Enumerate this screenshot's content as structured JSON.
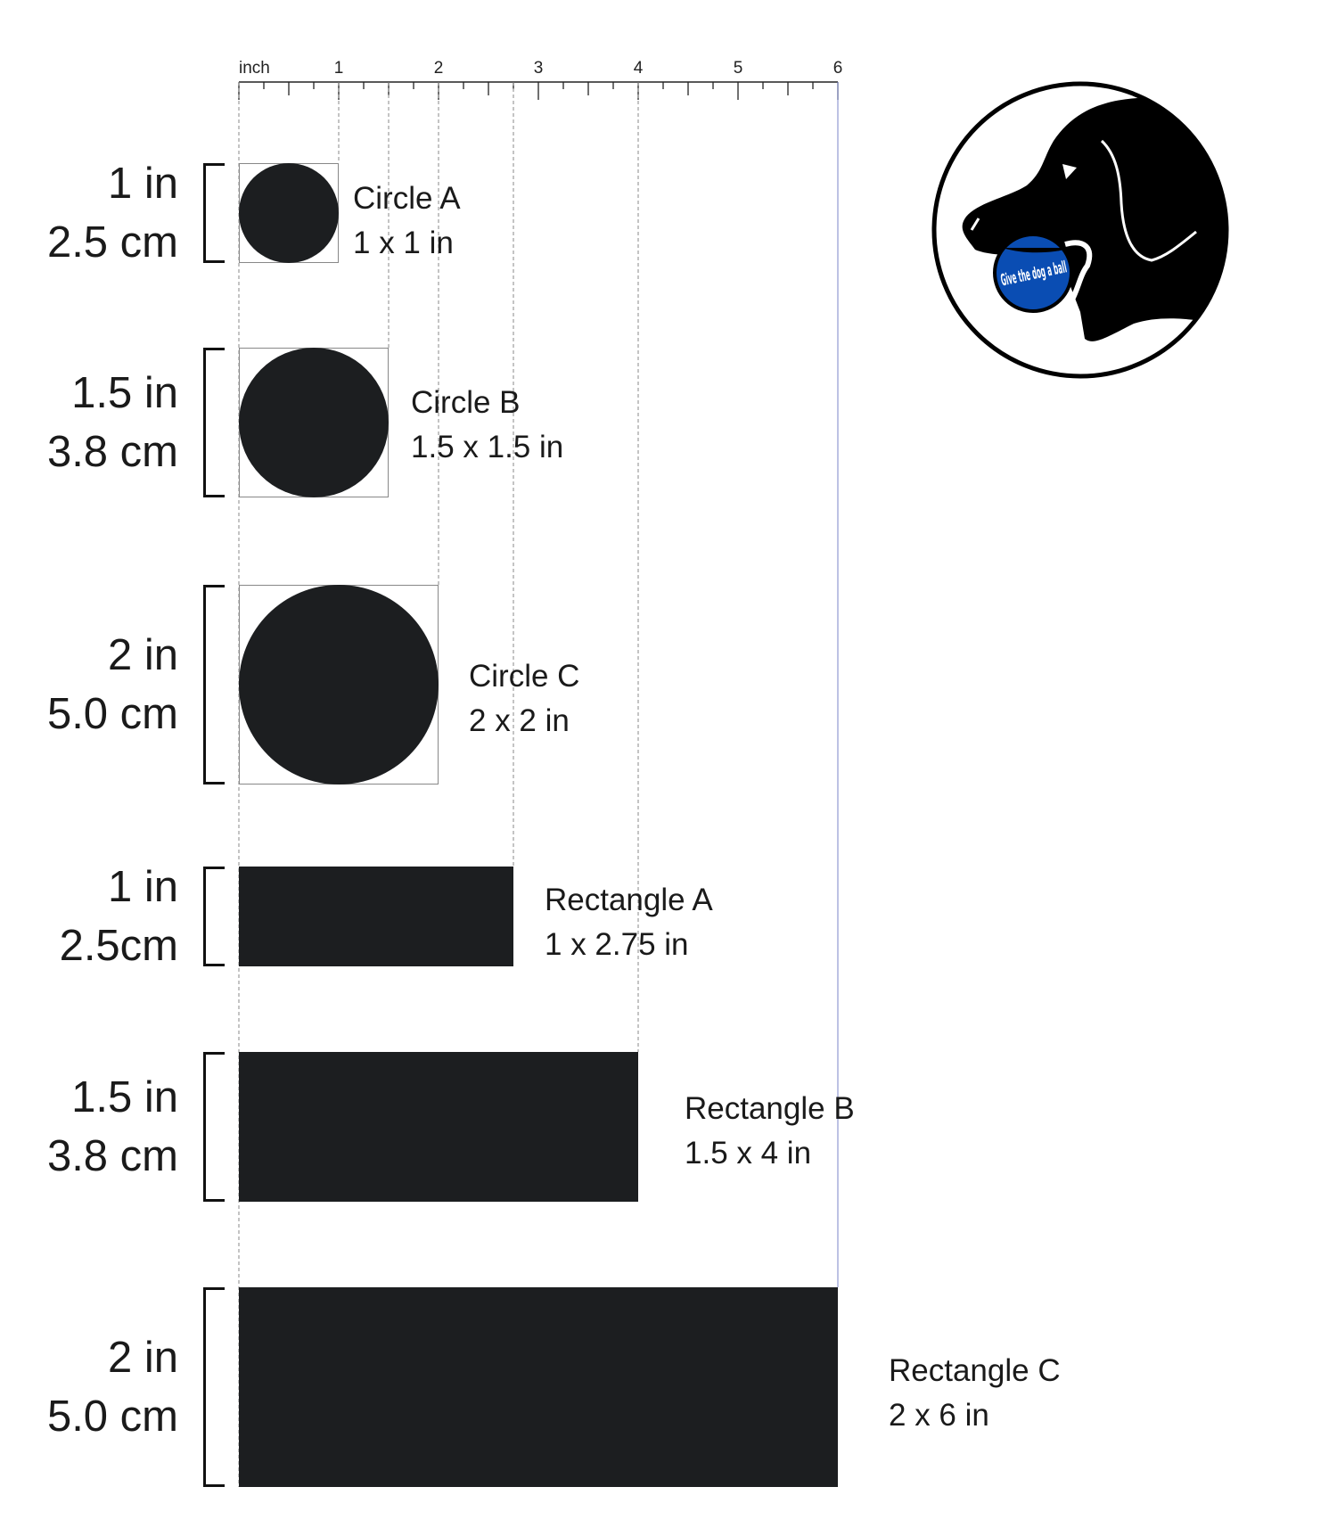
{
  "ruler": {
    "unit_label": "inch",
    "tick_labels": [
      "1",
      "2",
      "3",
      "4",
      "5",
      "6"
    ],
    "max_inches": 6,
    "minor_ticks_per_inch": 4
  },
  "guide_lines_inches": [
    1,
    1.5,
    2,
    2.75,
    4,
    6
  ],
  "shapes": [
    {
      "id": "circle-a",
      "type": "circle",
      "name": "Circle A",
      "size_label": "1 x 1 in",
      "height_in": 1,
      "width_in": 1,
      "side_in": "1 in",
      "side_cm": "2.5 cm"
    },
    {
      "id": "circle-b",
      "type": "circle",
      "name": "Circle B",
      "size_label": "1.5 x 1.5 in",
      "height_in": 1.5,
      "width_in": 1.5,
      "side_in": "1.5 in",
      "side_cm": "3.8 cm"
    },
    {
      "id": "circle-c",
      "type": "circle",
      "name": "Circle C",
      "size_label": "2 x 2 in",
      "height_in": 2,
      "width_in": 2,
      "side_in": "2 in",
      "side_cm": "5.0 cm"
    },
    {
      "id": "rectangle-a",
      "type": "rectangle",
      "name": "Rectangle A",
      "size_label": "1 x 2.75 in",
      "height_in": 1,
      "width_in": 2.75,
      "side_in": "1 in",
      "side_cm": "2.5cm"
    },
    {
      "id": "rectangle-b",
      "type": "rectangle",
      "name": "Rectangle B",
      "size_label": "1.5 x 4 in",
      "height_in": 1.5,
      "width_in": 4,
      "side_in": "1.5 in",
      "side_cm": "3.8 cm"
    },
    {
      "id": "rectangle-c",
      "type": "rectangle",
      "name": "Rectangle C",
      "size_label": "2 x 6 in",
      "height_in": 2,
      "width_in": 6,
      "side_in": "2 in",
      "side_cm": "5.0 cm"
    }
  ],
  "logo": {
    "text": "Give the dog a ball",
    "ball_color": "#0a4db3",
    "ink_color": "#000000"
  },
  "colors": {
    "shape_fill": "#1c1e20",
    "guide": "#888888",
    "end_guide": "#7b86c9"
  }
}
